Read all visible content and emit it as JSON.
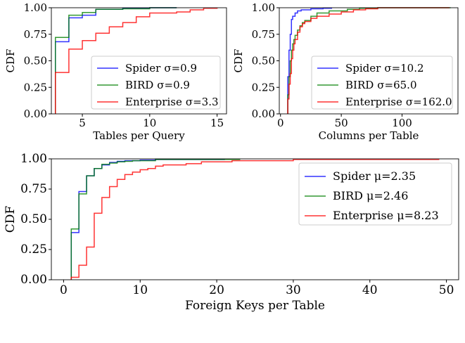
{
  "chart_data": [
    {
      "type": "line",
      "step": true,
      "xlabel": "Tables per Query",
      "ylabel": "CDF",
      "xlim": [
        2.7,
        15.7
      ],
      "ylim": [
        0,
        1
      ],
      "xticks": [
        5,
        10,
        15
      ],
      "yticks": [
        0,
        0.25,
        0.5,
        0.75,
        1.0
      ],
      "grid": false,
      "legend_position": "lower-right",
      "series": [
        {
          "name": "Spider",
          "stat": "σ=0.9",
          "color": "#0000ff",
          "x": [
            3,
            4,
            5,
            6,
            8,
            10,
            12
          ],
          "y": [
            0.68,
            0.905,
            0.93,
            0.985,
            0.995,
            1.0,
            1.0
          ]
        },
        {
          "name": "BIRD",
          "stat": "σ=0.9",
          "color": "#008000",
          "x": [
            3,
            4,
            5,
            6,
            8,
            10,
            12
          ],
          "y": [
            0.72,
            0.93,
            0.955,
            0.985,
            0.99,
            1.0,
            1.0
          ]
        },
        {
          "name": "Enterprise",
          "stat": "σ=3.3",
          "color": "#ff0000",
          "x": [
            3,
            4,
            5,
            6,
            7,
            8,
            9,
            10,
            12,
            13,
            14,
            15
          ],
          "y": [
            0.39,
            0.61,
            0.69,
            0.76,
            0.82,
            0.86,
            0.915,
            0.95,
            0.96,
            0.98,
            0.995,
            1.0
          ]
        }
      ]
    },
    {
      "type": "line",
      "step": true,
      "xlabel": "Columns per Table",
      "ylabel": "CDF",
      "xlim": [
        -1,
        146
      ],
      "ylim": [
        0,
        1
      ],
      "xticks": [
        0,
        50,
        100
      ],
      "yticks": [
        0,
        0.25,
        0.5,
        0.75,
        1.0
      ],
      "grid": false,
      "legend_position": "lower-right",
      "series": [
        {
          "name": "Spider",
          "stat": "σ=10.2",
          "color": "#0000ff",
          "x": [
            6,
            7,
            8,
            9,
            10,
            12,
            14,
            17,
            25,
            35,
            42
          ],
          "y": [
            0.35,
            0.6,
            0.75,
            0.89,
            0.92,
            0.95,
            0.97,
            0.98,
            0.99,
            0.995,
            1.0
          ]
        },
        {
          "name": "BIRD",
          "stat": "σ=65.0",
          "color": "#008000",
          "x": [
            6,
            7,
            8,
            9,
            10,
            11,
            12,
            14,
            16,
            18,
            20,
            25,
            30,
            40,
            55,
            65,
            80,
            140
          ],
          "y": [
            0.18,
            0.35,
            0.5,
            0.6,
            0.66,
            0.7,
            0.74,
            0.79,
            0.83,
            0.86,
            0.88,
            0.92,
            0.95,
            0.97,
            0.985,
            0.995,
            1.0,
            1.0
          ]
        },
        {
          "name": "Enterprise",
          "stat": "σ=162.0",
          "color": "#ff0000",
          "x": [
            6,
            7,
            8,
            9,
            10,
            11,
            12,
            14,
            16,
            18,
            20,
            25,
            30,
            40,
            50,
            60,
            70,
            80,
            139
          ],
          "y": [
            0.14,
            0.28,
            0.38,
            0.52,
            0.6,
            0.66,
            0.7,
            0.77,
            0.82,
            0.85,
            0.87,
            0.9,
            0.92,
            0.94,
            0.96,
            0.98,
            0.99,
            1.0,
            1.0
          ]
        }
      ]
    },
    {
      "type": "line",
      "step": true,
      "xlabel": "Foreign Keys per Table",
      "ylabel": "CDF",
      "xlim": [
        -1.6,
        51.6
      ],
      "ylim": [
        0,
        1
      ],
      "xticks": [
        0,
        10,
        20,
        30,
        40,
        50
      ],
      "yticks": [
        0,
        0.25,
        0.5,
        0.75,
        1.0
      ],
      "grid": false,
      "legend_position": "upper-right",
      "series": [
        {
          "name": "Spider",
          "stat": "μ=2.35",
          "color": "#0000ff",
          "x": [
            1,
            2,
            3,
            4,
            5,
            6,
            7,
            8,
            10,
            12,
            21
          ],
          "y": [
            0.39,
            0.73,
            0.86,
            0.92,
            0.95,
            0.97,
            0.98,
            0.985,
            0.99,
            0.995,
            1.0
          ]
        },
        {
          "name": "BIRD",
          "stat": "μ=2.46",
          "color": "#008000",
          "x": [
            1,
            2,
            3,
            4,
            5,
            6,
            7,
            8,
            9,
            12,
            23
          ],
          "y": [
            0.42,
            0.71,
            0.86,
            0.92,
            0.955,
            0.965,
            0.975,
            0.98,
            0.985,
            0.995,
            1.0
          ]
        },
        {
          "name": "Enterprise",
          "stat": "μ=8.23",
          "color": "#ff0000",
          "x": [
            1,
            2,
            3,
            4,
            5,
            6,
            7,
            8,
            9,
            10,
            11,
            12,
            13,
            16,
            18,
            22,
            30,
            49
          ],
          "y": [
            0.02,
            0.12,
            0.27,
            0.55,
            0.68,
            0.77,
            0.83,
            0.87,
            0.89,
            0.91,
            0.92,
            0.94,
            0.95,
            0.96,
            0.975,
            0.985,
            0.995,
            1.0
          ]
        }
      ]
    }
  ]
}
